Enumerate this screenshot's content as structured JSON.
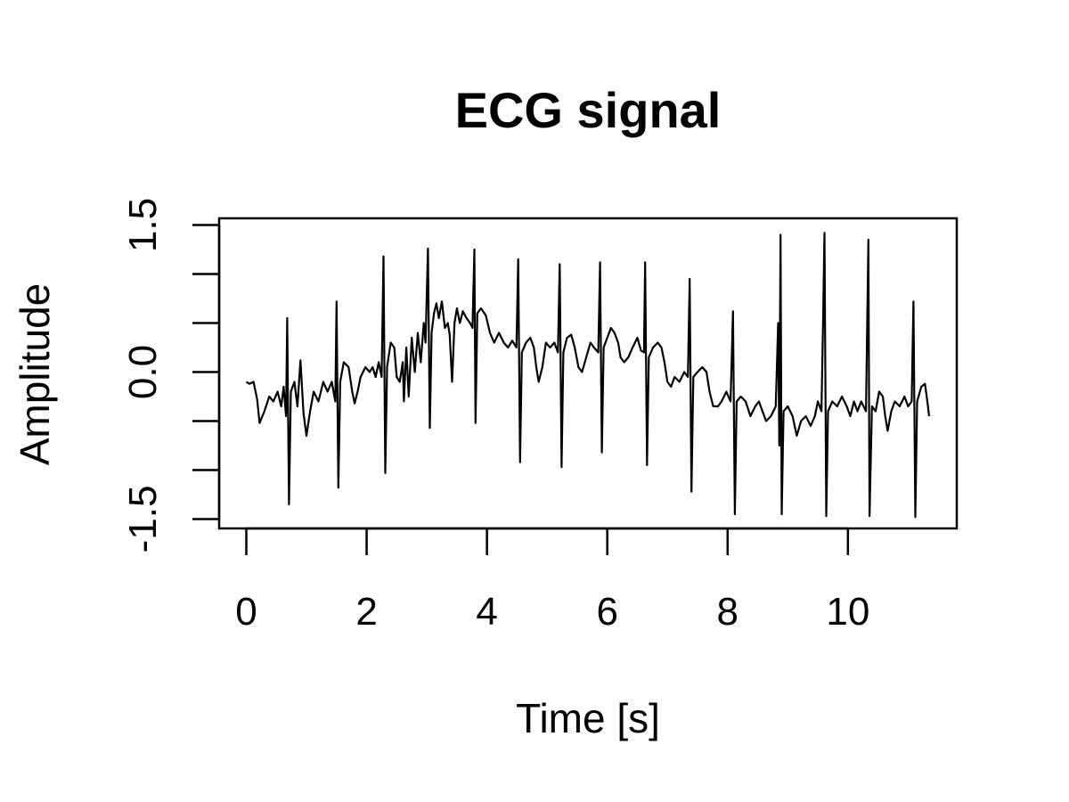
{
  "chart_data": {
    "type": "line",
    "title": "ECG signal",
    "xlabel": "Time [s]",
    "ylabel": "Amplitude",
    "xlim": [
      0,
      11.35
    ],
    "ylim": [
      -1.5,
      1.5
    ],
    "x_ticks": [
      0,
      2,
      4,
      6,
      8,
      10
    ],
    "x_tick_labels": [
      "0",
      "2",
      "4",
      "6",
      "8",
      "10"
    ],
    "y_ticks": [
      -1.5,
      -1.0,
      -0.5,
      0.0,
      0.5,
      1.0,
      1.5
    ],
    "y_tick_labels": [
      "-1.5",
      "0.0",
      "1.5"
    ],
    "grid": false,
    "color": "#000000",
    "series": [
      {
        "values": [
          [
            0.0,
            -0.1
          ],
          [
            0.05,
            -0.12
          ],
          [
            0.12,
            -0.1
          ],
          [
            0.18,
            -0.28
          ],
          [
            0.22,
            -0.52
          ],
          [
            0.3,
            -0.4
          ],
          [
            0.38,
            -0.25
          ],
          [
            0.45,
            -0.3
          ],
          [
            0.52,
            -0.2
          ],
          [
            0.58,
            -0.35
          ],
          [
            0.62,
            -0.15
          ],
          [
            0.66,
            -0.45
          ],
          [
            0.68,
            0.55
          ],
          [
            0.71,
            -1.35
          ],
          [
            0.74,
            -0.2
          ],
          [
            0.8,
            -0.1
          ],
          [
            0.85,
            -0.35
          ],
          [
            0.9,
            0.12
          ],
          [
            0.95,
            -0.42
          ],
          [
            1.0,
            -0.65
          ],
          [
            1.06,
            -0.4
          ],
          [
            1.12,
            -0.2
          ],
          [
            1.2,
            -0.3
          ],
          [
            1.28,
            -0.1
          ],
          [
            1.35,
            -0.2
          ],
          [
            1.42,
            -0.1
          ],
          [
            1.48,
            -0.3
          ],
          [
            1.5,
            0.72
          ],
          [
            1.53,
            -1.18
          ],
          [
            1.56,
            -0.1
          ],
          [
            1.62,
            0.1
          ],
          [
            1.7,
            0.05
          ],
          [
            1.76,
            -0.2
          ],
          [
            1.8,
            -0.32
          ],
          [
            1.85,
            -0.2
          ],
          [
            1.9,
            -0.05
          ],
          [
            1.98,
            0.05
          ],
          [
            2.05,
            0.0
          ],
          [
            2.1,
            0.05
          ],
          [
            2.15,
            -0.05
          ],
          [
            2.2,
            0.1
          ],
          [
            2.25,
            -0.05
          ],
          [
            2.28,
            1.18
          ],
          [
            2.31,
            -1.03
          ],
          [
            2.34,
            0.05
          ],
          [
            2.4,
            0.3
          ],
          [
            2.46,
            0.25
          ],
          [
            2.5,
            -0.05
          ],
          [
            2.55,
            -0.1
          ],
          [
            2.6,
            0.1
          ],
          [
            2.62,
            -0.3
          ],
          [
            2.66,
            0.25
          ],
          [
            2.7,
            -0.25
          ],
          [
            2.75,
            0.35
          ],
          [
            2.8,
            0.0
          ],
          [
            2.85,
            0.4
          ],
          [
            2.9,
            0.1
          ],
          [
            2.95,
            0.5
          ],
          [
            2.98,
            0.3
          ],
          [
            3.02,
            1.26
          ],
          [
            3.05,
            -0.57
          ],
          [
            3.08,
            0.4
          ],
          [
            3.12,
            0.6
          ],
          [
            3.16,
            0.7
          ],
          [
            3.2,
            0.55
          ],
          [
            3.25,
            0.72
          ],
          [
            3.3,
            0.45
          ],
          [
            3.35,
            0.5
          ],
          [
            3.38,
            0.38
          ],
          [
            3.42,
            -0.1
          ],
          [
            3.46,
            0.5
          ],
          [
            3.5,
            0.65
          ],
          [
            3.55,
            0.5
          ],
          [
            3.6,
            0.62
          ],
          [
            3.66,
            0.55
          ],
          [
            3.72,
            0.5
          ],
          [
            3.76,
            0.45
          ],
          [
            3.79,
            1.25
          ],
          [
            3.81,
            -0.52
          ],
          [
            3.84,
            0.6
          ],
          [
            3.9,
            0.65
          ],
          [
            3.98,
            0.58
          ],
          [
            4.05,
            0.4
          ],
          [
            4.12,
            0.3
          ],
          [
            4.2,
            0.4
          ],
          [
            4.28,
            0.3
          ],
          [
            4.35,
            0.25
          ],
          [
            4.42,
            0.32
          ],
          [
            4.49,
            0.25
          ],
          [
            4.52,
            1.15
          ],
          [
            4.55,
            -0.92
          ],
          [
            4.58,
            0.2
          ],
          [
            4.65,
            0.3
          ],
          [
            4.72,
            0.35
          ],
          [
            4.78,
            0.25
          ],
          [
            4.82,
            0.05
          ],
          [
            4.86,
            -0.1
          ],
          [
            4.92,
            0.05
          ],
          [
            4.98,
            0.3
          ],
          [
            5.05,
            0.25
          ],
          [
            5.12,
            0.3
          ],
          [
            5.18,
            0.2
          ],
          [
            5.21,
            1.1
          ],
          [
            5.24,
            -0.97
          ],
          [
            5.27,
            0.2
          ],
          [
            5.33,
            0.35
          ],
          [
            5.4,
            0.38
          ],
          [
            5.46,
            0.25
          ],
          [
            5.52,
            0.05
          ],
          [
            5.58,
            0.0
          ],
          [
            5.65,
            0.15
          ],
          [
            5.72,
            0.3
          ],
          [
            5.78,
            0.25
          ],
          [
            5.85,
            0.2
          ],
          [
            5.88,
            1.12
          ],
          [
            5.91,
            -0.82
          ],
          [
            5.94,
            0.25
          ],
          [
            6.0,
            0.35
          ],
          [
            6.06,
            0.45
          ],
          [
            6.12,
            0.4
          ],
          [
            6.18,
            0.3
          ],
          [
            6.22,
            0.15
          ],
          [
            6.28,
            0.1
          ],
          [
            6.35,
            0.15
          ],
          [
            6.42,
            0.25
          ],
          [
            6.5,
            0.35
          ],
          [
            6.56,
            0.22
          ],
          [
            6.61,
            0.2
          ],
          [
            6.63,
            1.12
          ],
          [
            6.66,
            -0.95
          ],
          [
            6.69,
            0.15
          ],
          [
            6.76,
            0.25
          ],
          [
            6.84,
            0.3
          ],
          [
            6.9,
            0.25
          ],
          [
            6.95,
            0.1
          ],
          [
            7.0,
            -0.1
          ],
          [
            7.06,
            -0.15
          ],
          [
            7.12,
            -0.05
          ],
          [
            7.2,
            -0.1
          ],
          [
            7.28,
            0.0
          ],
          [
            7.34,
            -0.05
          ],
          [
            7.37,
            0.95
          ],
          [
            7.4,
            -1.22
          ],
          [
            7.43,
            -0.05
          ],
          [
            7.5,
            0.0
          ],
          [
            7.58,
            0.05
          ],
          [
            7.65,
            0.0
          ],
          [
            7.7,
            -0.2
          ],
          [
            7.76,
            -0.35
          ],
          [
            7.84,
            -0.35
          ],
          [
            7.9,
            -0.3
          ],
          [
            7.98,
            -0.2
          ],
          [
            8.05,
            -0.3
          ],
          [
            8.09,
            0.62
          ],
          [
            8.12,
            -1.45
          ],
          [
            8.15,
            -0.3
          ],
          [
            8.22,
            -0.25
          ],
          [
            8.3,
            -0.3
          ],
          [
            8.38,
            -0.45
          ],
          [
            8.46,
            -0.35
          ],
          [
            8.52,
            -0.3
          ],
          [
            8.58,
            -0.4
          ],
          [
            8.64,
            -0.5
          ],
          [
            8.72,
            -0.45
          ],
          [
            8.8,
            -0.35
          ],
          [
            8.84,
            0.5
          ],
          [
            8.86,
            -0.75
          ],
          [
            8.88,
            1.4
          ],
          [
            8.9,
            -1.45
          ],
          [
            8.93,
            -0.4
          ],
          [
            9.0,
            -0.35
          ],
          [
            9.08,
            -0.45
          ],
          [
            9.15,
            -0.65
          ],
          [
            9.22,
            -0.5
          ],
          [
            9.3,
            -0.45
          ],
          [
            9.38,
            -0.55
          ],
          [
            9.45,
            -0.45
          ],
          [
            9.5,
            -0.3
          ],
          [
            9.56,
            -0.4
          ],
          [
            9.59,
            0.6
          ],
          [
            9.61,
            1.42
          ],
          [
            9.64,
            -1.47
          ],
          [
            9.67,
            -0.4
          ],
          [
            9.74,
            -0.3
          ],
          [
            9.82,
            -0.35
          ],
          [
            9.9,
            -0.25
          ],
          [
            9.98,
            -0.35
          ],
          [
            10.04,
            -0.45
          ],
          [
            10.1,
            -0.3
          ],
          [
            10.16,
            -0.4
          ],
          [
            10.22,
            -0.3
          ],
          [
            10.3,
            -0.4
          ],
          [
            10.34,
            1.35
          ],
          [
            10.36,
            -1.47
          ],
          [
            10.4,
            -0.35
          ],
          [
            10.46,
            -0.4
          ],
          [
            10.52,
            -0.2
          ],
          [
            10.58,
            -0.25
          ],
          [
            10.62,
            -0.45
          ],
          [
            10.66,
            -0.6
          ],
          [
            10.72,
            -0.4
          ],
          [
            10.78,
            -0.3
          ],
          [
            10.86,
            -0.35
          ],
          [
            10.94,
            -0.25
          ],
          [
            11.0,
            -0.35
          ],
          [
            11.06,
            -0.3
          ],
          [
            11.09,
            0.72
          ],
          [
            11.12,
            -1.48
          ],
          [
            11.15,
            -0.3
          ],
          [
            11.22,
            -0.15
          ],
          [
            11.28,
            -0.12
          ],
          [
            11.32,
            -0.3
          ],
          [
            11.35,
            -0.45
          ]
        ]
      }
    ]
  }
}
